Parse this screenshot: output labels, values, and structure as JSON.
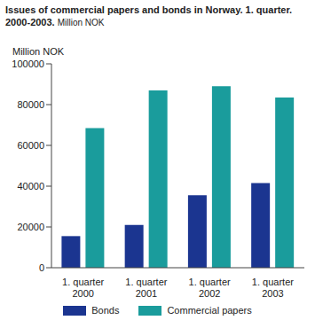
{
  "chart_data": {
    "type": "bar",
    "title": "Issues of commercial papers and bonds in Norway. 1. quarter. 2000-2003.",
    "subtitle": "Million NOK",
    "y_label": "Million NOK",
    "categories": [
      "1. quarter 2000",
      "1. quarter 2001",
      "1. quarter 2002",
      "1. quarter 2003"
    ],
    "series": [
      {
        "name": "Bonds",
        "color": "#1b3590",
        "values": [
          15500,
          21000,
          35500,
          41500
        ]
      },
      {
        "name": "Commercial papers",
        "color": "#1a9c9c",
        "values": [
          68500,
          87000,
          89000,
          83500
        ]
      }
    ],
    "ylim": [
      0,
      100000
    ],
    "yticks": [
      0,
      20000,
      40000,
      60000,
      80000,
      100000
    ],
    "grid": false,
    "legend": "bottom"
  }
}
